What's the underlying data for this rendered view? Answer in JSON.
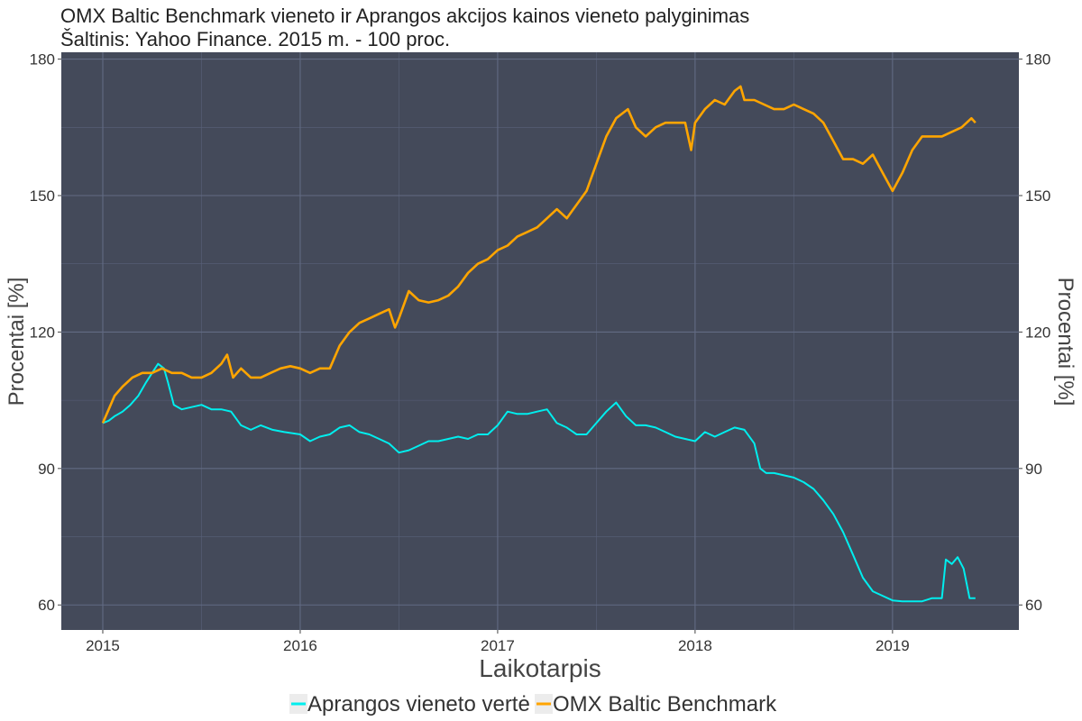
{
  "chart_data": {
    "type": "line",
    "title": "OMX Baltic Benchmark vieneto ir Aprangos akcijos kainos vieneto palyginimas",
    "subtitle": "Šaltinis: Yahoo Finance. 2015 m. - 100 proc.",
    "xlabel": "Laikotarpis",
    "ylabel": "Procentai [%]",
    "ylabel_right": "Procentai [%]",
    "xlim": [
      2014.79,
      2019.64
    ],
    "ylim": [
      54.5,
      181.5
    ],
    "x_ticks": [
      2015,
      2016,
      2017,
      2018,
      2019
    ],
    "x_tick_labels": [
      "2015",
      "2016",
      "2017",
      "2018",
      "2019"
    ],
    "y_ticks": [
      60,
      90,
      120,
      150,
      180
    ],
    "y_tick_labels": [
      "60",
      "90",
      "120",
      "150",
      "180"
    ],
    "grid": true,
    "background": "#444a5a",
    "legend_position": "bottom",
    "series": [
      {
        "name": "Aprangos vieneto vertė",
        "color": "#00eeee",
        "x": [
          2015.0,
          2015.03,
          2015.06,
          2015.1,
          2015.14,
          2015.18,
          2015.22,
          2015.25,
          2015.28,
          2015.31,
          2015.33,
          2015.36,
          2015.4,
          2015.45,
          2015.5,
          2015.55,
          2015.6,
          2015.65,
          2015.7,
          2015.75,
          2015.8,
          2015.86,
          2015.92,
          2016.0,
          2016.05,
          2016.1,
          2016.15,
          2016.2,
          2016.25,
          2016.3,
          2016.35,
          2016.4,
          2016.45,
          2016.5,
          2016.55,
          2016.6,
          2016.65,
          2016.7,
          2016.75,
          2016.8,
          2016.85,
          2016.9,
          2016.95,
          2017.0,
          2017.05,
          2017.1,
          2017.15,
          2017.2,
          2017.25,
          2017.3,
          2017.35,
          2017.4,
          2017.45,
          2017.5,
          2017.55,
          2017.6,
          2017.65,
          2017.7,
          2017.75,
          2017.8,
          2017.85,
          2017.9,
          2017.95,
          2018.0,
          2018.05,
          2018.1,
          2018.15,
          2018.2,
          2018.25,
          2018.3,
          2018.33,
          2018.36,
          2018.4,
          2018.45,
          2018.5,
          2018.55,
          2018.6,
          2018.65,
          2018.7,
          2018.75,
          2018.8,
          2018.85,
          2018.9,
          2018.95,
          2019.0,
          2019.05,
          2019.1,
          2019.15,
          2019.2,
          2019.25,
          2019.27,
          2019.3,
          2019.33,
          2019.36,
          2019.39,
          2019.42
        ],
        "values": [
          100,
          100.5,
          101.5,
          102.5,
          104,
          106,
          109,
          111,
          113,
          112,
          109,
          104,
          103,
          103.5,
          104,
          103,
          103,
          102.5,
          99.5,
          98.5,
          99.5,
          98.5,
          98,
          97.5,
          96,
          97,
          97.5,
          99,
          99.5,
          98,
          97.5,
          96.5,
          95.5,
          93.5,
          94,
          95,
          96,
          96,
          96.5,
          97,
          96.5,
          97.5,
          97.5,
          99.5,
          102.5,
          102,
          102,
          102.5,
          103,
          100,
          99,
          97.5,
          97.5,
          100,
          102.5,
          104.5,
          101.5,
          99.5,
          99.5,
          99,
          98,
          97,
          96.5,
          96,
          98,
          97,
          98,
          99,
          98.5,
          95.5,
          90,
          89,
          89,
          88.5,
          88,
          87,
          85.5,
          83,
          80,
          76,
          71,
          66,
          63,
          62,
          61,
          60.8,
          60.8,
          60.8,
          61.5,
          61.5,
          70,
          69,
          70.5,
          68,
          61.5,
          61.5
        ]
      },
      {
        "name": "OMX Baltic Benchmark",
        "color": "#ffa500",
        "x": [
          2015.0,
          2015.03,
          2015.06,
          2015.1,
          2015.15,
          2015.2,
          2015.25,
          2015.3,
          2015.35,
          2015.4,
          2015.45,
          2015.5,
          2015.55,
          2015.6,
          2015.63,
          2015.66,
          2015.7,
          2015.75,
          2015.8,
          2015.85,
          2015.9,
          2015.95,
          2016.0,
          2016.05,
          2016.1,
          2016.15,
          2016.2,
          2016.25,
          2016.3,
          2016.35,
          2016.4,
          2016.45,
          2016.48,
          2016.5,
          2016.55,
          2016.6,
          2016.65,
          2016.7,
          2016.75,
          2016.8,
          2016.85,
          2016.9,
          2016.95,
          2017.0,
          2017.05,
          2017.1,
          2017.15,
          2017.2,
          2017.25,
          2017.3,
          2017.35,
          2017.4,
          2017.45,
          2017.5,
          2017.55,
          2017.6,
          2017.63,
          2017.66,
          2017.7,
          2017.75,
          2017.8,
          2017.85,
          2017.9,
          2017.95,
          2017.98,
          2018.0,
          2018.05,
          2018.1,
          2018.15,
          2018.2,
          2018.23,
          2018.25,
          2018.3,
          2018.35,
          2018.4,
          2018.45,
          2018.5,
          2018.55,
          2018.6,
          2018.65,
          2018.7,
          2018.75,
          2018.8,
          2018.85,
          2018.9,
          2018.95,
          2019.0,
          2019.05,
          2019.1,
          2019.15,
          2019.2,
          2019.25,
          2019.3,
          2019.35,
          2019.4,
          2019.42
        ],
        "values": [
          100,
          103,
          106,
          108,
          110,
          111,
          111,
          112,
          111,
          111,
          110,
          110,
          111,
          113,
          115,
          110,
          112,
          110,
          110,
          111,
          112,
          112.5,
          112,
          111,
          112,
          112,
          117,
          120,
          122,
          123,
          124,
          125,
          121,
          123,
          129,
          127,
          126.5,
          127,
          128,
          130,
          133,
          135,
          136,
          138,
          139,
          141,
          142,
          143,
          145,
          147,
          145,
          148,
          151,
          157,
          163,
          167,
          168,
          169,
          165,
          163,
          165,
          166,
          166,
          166,
          160,
          166,
          169,
          171,
          170,
          173,
          174,
          171,
          171,
          170,
          169,
          169,
          170,
          169,
          168,
          166,
          162,
          158,
          158,
          157,
          159,
          155,
          151,
          155,
          160,
          163,
          163,
          163,
          164,
          165,
          167,
          166
        ]
      }
    ]
  }
}
